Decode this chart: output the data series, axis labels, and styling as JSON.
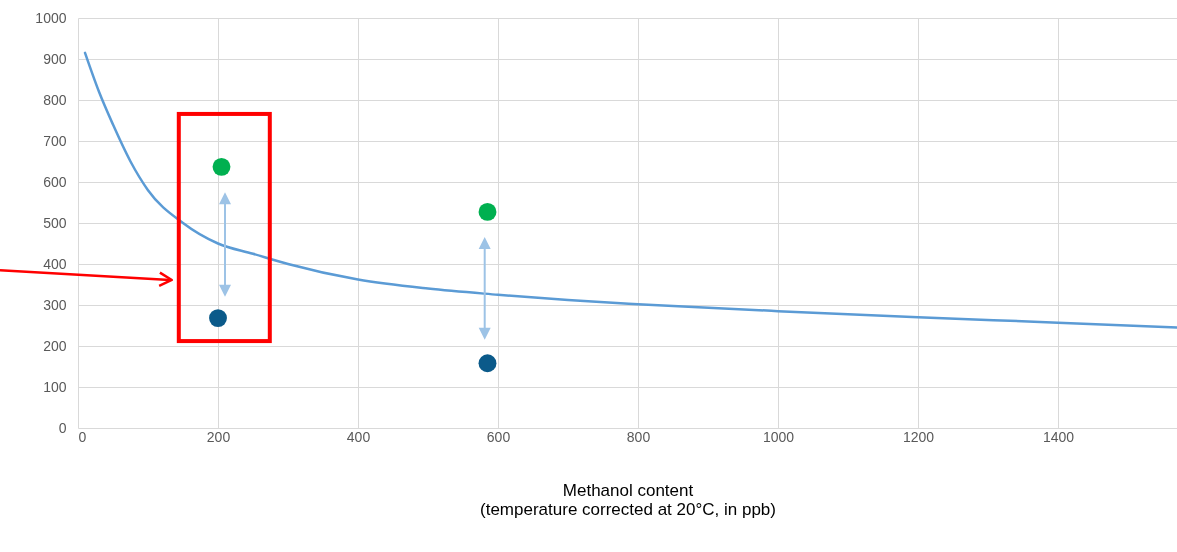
{
  "chart_data": {
    "type": "line",
    "xlabel": "Methanol content\n(temperature corrected at 20°C, in ppb)",
    "xlim": [
      0,
      1570
    ],
    "ylim": [
      0,
      1000
    ],
    "xticks": [
      0,
      200,
      400,
      600,
      800,
      1000,
      1200,
      1400
    ],
    "yticks": [
      0,
      100,
      200,
      300,
      400,
      500,
      600,
      700,
      800,
      900,
      1000
    ],
    "grid": true,
    "series": [
      {
        "type": "line",
        "color": "#5b9bd5",
        "x": [
          10,
          30,
          50,
          75,
          100,
          150,
          200,
          250,
          300,
          400,
          500,
          600,
          700,
          800,
          1000,
          1200,
          1400,
          1570
        ],
        "values": [
          915,
          820,
          740,
          650,
          580,
          500,
          450,
          425,
          400,
          362,
          340,
          325,
          312,
          302,
          285,
          270,
          257,
          245
        ]
      },
      {
        "type": "scatter",
        "color": "#00b050",
        "x": [
          205,
          585
        ],
        "values": [
          637,
          527
        ]
      },
      {
        "type": "scatter",
        "color": "#0b5a8a",
        "x": [
          200,
          585
        ],
        "values": [
          268,
          158
        ]
      }
    ]
  }
}
